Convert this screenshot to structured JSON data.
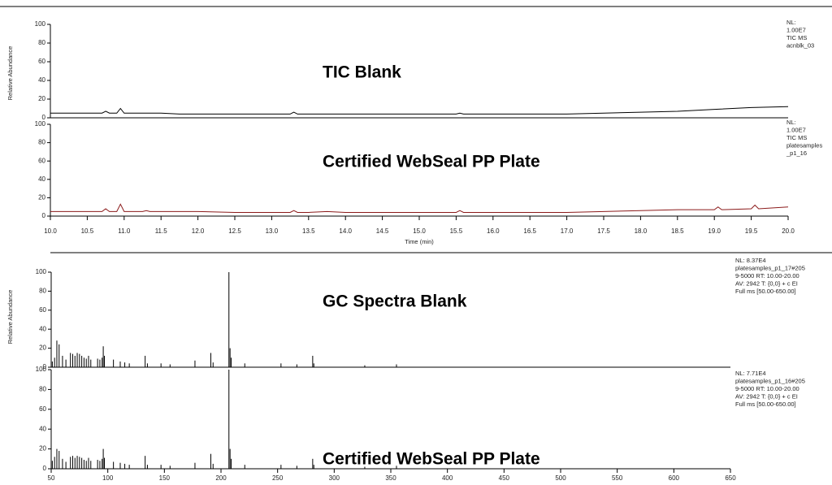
{
  "chart_data": [
    {
      "type": "line",
      "label": "TIC Blank",
      "ylabel": "Relative Abundance",
      "color": "#000000",
      "annotation": [
        "NL:",
        "1.00E7",
        "TIC MS",
        "acnblk_03"
      ],
      "xlim": [
        10,
        20
      ],
      "ylim": [
        0,
        100
      ],
      "yticks": [
        0,
        20,
        40,
        60,
        80,
        100
      ],
      "x": [
        10,
        10.25,
        10.5,
        10.7,
        10.75,
        10.8,
        10.9,
        10.95,
        11,
        11.25,
        11.5,
        11.75,
        12,
        12.5,
        13,
        13.25,
        13.3,
        13.35,
        13.5,
        14,
        14.5,
        15,
        15.5,
        15.55,
        15.6,
        16,
        16.5,
        17,
        17.5,
        18,
        18.5,
        19,
        19.5,
        20
      ],
      "values": [
        5,
        5,
        5,
        5,
        7,
        5,
        5,
        10,
        5,
        5,
        5,
        4,
        4,
        4,
        4,
        4,
        6,
        4,
        4,
        4,
        4,
        4,
        4,
        5,
        4,
        4,
        4,
        4,
        5,
        6,
        7,
        9,
        11,
        12
      ]
    },
    {
      "type": "line",
      "label": "Certified WebSeal PP Plate",
      "xlabel": "Time (min)",
      "color": "#8b1a1a",
      "annotation": [
        "NL:",
        "1.00E7",
        "TIC MS",
        "platesamples",
        "_p1_16"
      ],
      "xlim": [
        10,
        20
      ],
      "ylim": [
        0,
        100
      ],
      "yticks": [
        0,
        20,
        40,
        60,
        80,
        100
      ],
      "xticks": [
        {
          "value": 10,
          "label": "10.0"
        },
        {
          "value": 10.5,
          "label": "10.5"
        },
        {
          "value": 11,
          "label": "11.0"
        },
        {
          "value": 11.5,
          "label": "11.5"
        },
        {
          "value": 12,
          "label": "12.0"
        },
        {
          "value": 12.5,
          "label": "12.5"
        },
        {
          "value": 13,
          "label": "13.0"
        },
        {
          "value": 13.5,
          "label": "13.5"
        },
        {
          "value": 14,
          "label": "14.0"
        },
        {
          "value": 14.5,
          "label": "14.5"
        },
        {
          "value": 15,
          "label": "15.0"
        },
        {
          "value": 15.5,
          "label": "15.5"
        },
        {
          "value": 16,
          "label": "16.0"
        },
        {
          "value": 16.5,
          "label": "16.5"
        },
        {
          "value": 17,
          "label": "17.0"
        },
        {
          "value": 17.5,
          "label": "17.5"
        },
        {
          "value": 18,
          "label": "18.0"
        },
        {
          "value": 18.5,
          "label": "18.5"
        },
        {
          "value": 19,
          "label": "19.0"
        },
        {
          "value": 19.5,
          "label": "19.5"
        },
        {
          "value": 20,
          "label": "20.0"
        }
      ],
      "x": [
        10,
        10.25,
        10.5,
        10.7,
        10.75,
        10.8,
        10.9,
        10.95,
        11,
        11.25,
        11.3,
        11.35,
        11.5,
        12,
        12.5,
        13,
        13.25,
        13.3,
        13.35,
        13.5,
        13.75,
        14,
        14.5,
        15,
        15.5,
        15.55,
        15.6,
        16,
        16.5,
        17,
        17.5,
        18,
        18.5,
        19,
        19.05,
        19.1,
        19.5,
        19.55,
        19.6,
        20
      ],
      "values": [
        5,
        5,
        5,
        5,
        8,
        5,
        5,
        13,
        5,
        5,
        6,
        5,
        5,
        5,
        4,
        4,
        4,
        6,
        4,
        4,
        5,
        4,
        4,
        4,
        4,
        6,
        4,
        4,
        4,
        4,
        5,
        6,
        7,
        7,
        10,
        7,
        8,
        12,
        8,
        10
      ]
    },
    {
      "type": "bar",
      "label": "GC Spectra Blank",
      "ylabel": "Relative Abundance",
      "color": "#000000",
      "annotation": [
        "NL: 8.37E4",
        "platesamples_p1_17#205",
        "9-5000  RT: 10.00-20.00",
        " AV: 2942 T: {0,0}  + c EI",
        "Full ms [50.00-650.00]"
      ],
      "xlim": [
        50,
        650
      ],
      "ylim": [
        0,
        100
      ],
      "yticks": [
        0,
        20,
        40,
        60,
        80,
        100
      ],
      "x": [
        51,
        53,
        55,
        57,
        60,
        63,
        67,
        69,
        71,
        73,
        75,
        77,
        79,
        81,
        83,
        85,
        91,
        93,
        95,
        96,
        97,
        105,
        111,
        115,
        119,
        133,
        135,
        147,
        155,
        177,
        191,
        193,
        207,
        208,
        209,
        221,
        253,
        267,
        281,
        282,
        327,
        355
      ],
      "values": [
        6,
        10,
        28,
        24,
        12,
        8,
        15,
        14,
        12,
        15,
        14,
        12,
        10,
        9,
        12,
        8,
        9,
        8,
        10,
        22,
        12,
        8,
        6,
        5,
        4,
        12,
        4,
        4,
        3,
        7,
        15,
        5,
        100,
        20,
        10,
        4,
        4,
        3,
        12,
        4,
        2,
        3
      ]
    },
    {
      "type": "bar",
      "label": "Certified WebSeal PP Plate",
      "color": "#000000",
      "annotation": [
        "NL: 7.71E4",
        "platesamples_p1_16#205",
        "9-5000  RT: 10.00-20.00",
        " AV: 2942 T: {0,0}  + c EI",
        "Full ms [50.00-650.00]"
      ],
      "xlim": [
        50,
        650
      ],
      "ylim": [
        0,
        100
      ],
      "yticks": [
        0,
        20,
        40,
        60,
        80,
        100
      ],
      "xticks": [
        50,
        100,
        150,
        200,
        250,
        300,
        350,
        400,
        450,
        500,
        550,
        600,
        650
      ],
      "x": [
        51,
        53,
        55,
        57,
        60,
        63,
        67,
        69,
        71,
        73,
        75,
        77,
        79,
        81,
        83,
        85,
        91,
        93,
        95,
        96,
        97,
        105,
        111,
        115,
        119,
        133,
        135,
        147,
        155,
        177,
        191,
        193,
        207,
        208,
        209,
        221,
        253,
        267,
        281,
        282,
        327,
        355
      ],
      "values": [
        8,
        12,
        20,
        18,
        10,
        7,
        12,
        13,
        11,
        13,
        12,
        11,
        9,
        8,
        11,
        8,
        9,
        8,
        10,
        20,
        11,
        7,
        6,
        5,
        4,
        13,
        4,
        4,
        3,
        6,
        15,
        5,
        100,
        20,
        10,
        4,
        4,
        3,
        10,
        4,
        2,
        3
      ]
    }
  ]
}
